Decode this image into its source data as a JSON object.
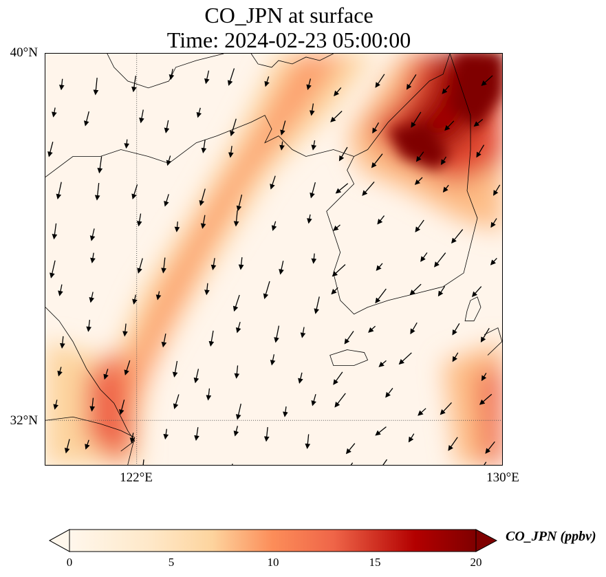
{
  "title": {
    "line1": "CO_JPN at surface",
    "line2": "Time: 2024-02-23 05:00:00"
  },
  "map": {
    "lat_labels": [
      "40°N",
      "32°N"
    ],
    "lon_labels": [
      "122°E",
      "130°E"
    ],
    "background_color": "#fff5eb"
  },
  "colorbar": {
    "label": "CO_JPN (ppbv)",
    "ticks": [
      "0",
      "5",
      "10",
      "15",
      "20"
    ],
    "range": [
      0,
      20
    ],
    "extend": "both",
    "colormap": "OrRd",
    "colors": [
      "#fff7ec",
      "#fdd49e",
      "#fc8d59",
      "#e34a33",
      "#b30000",
      "#7f0000"
    ]
  }
}
